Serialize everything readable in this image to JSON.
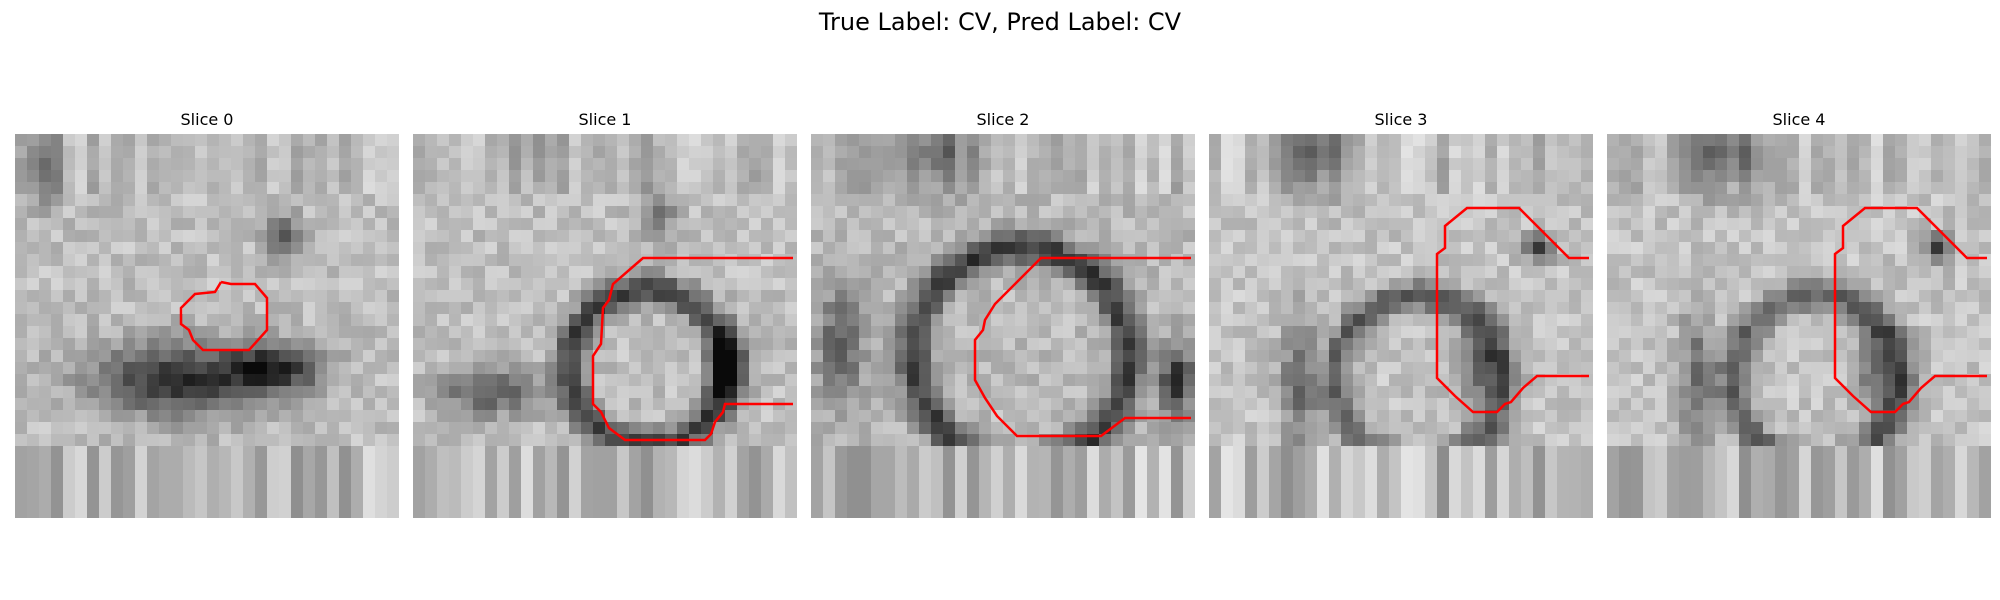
{
  "figure": {
    "title": "True Label: CV, Pred Label: CV",
    "contour_color": "#ff0000"
  },
  "slices": [
    {
      "title": "Slice 0"
    },
    {
      "title": "Slice 1"
    },
    {
      "title": "Slice 2"
    },
    {
      "title": "Slice 3"
    },
    {
      "title": "Slice 4"
    }
  ]
}
